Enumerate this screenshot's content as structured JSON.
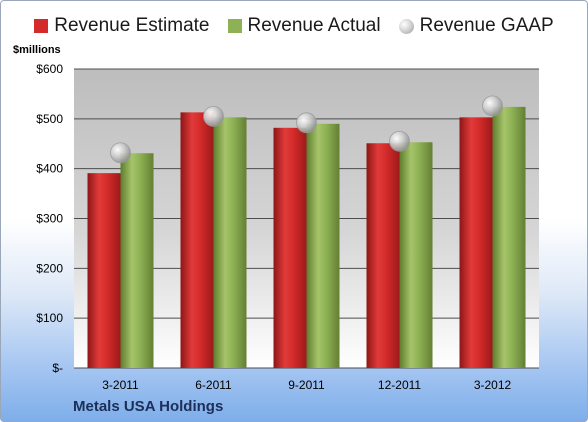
{
  "chart_data": {
    "type": "bar",
    "title": "",
    "ylabel": "$millions",
    "ylim": [
      0,
      600
    ],
    "yticks": [
      0,
      100,
      200,
      300,
      400,
      500,
      600
    ],
    "ytick_labels": [
      "$-",
      "$100",
      "$200",
      "$300",
      "$400",
      "$500",
      "$600"
    ],
    "categories": [
      "3-2011",
      "6-2011",
      "9-2011",
      "12-2011",
      "3-2012"
    ],
    "series": [
      {
        "name": "Revenue Estimate",
        "kind": "bar",
        "color": "#d42a2a",
        "values": [
          391,
          513,
          482,
          451,
          503
        ]
      },
      {
        "name": "Revenue Actual",
        "kind": "bar",
        "color": "#8db154",
        "values": [
          431,
          503,
          490,
          453,
          524
        ]
      },
      {
        "name": "Revenue GAAP",
        "kind": "marker",
        "color": "#c8c8c8",
        "values": [
          432,
          505,
          492,
          455,
          526
        ]
      }
    ],
    "grid": true,
    "legend_position": "top"
  },
  "footer": {
    "company": "Metals USA Holdings"
  }
}
